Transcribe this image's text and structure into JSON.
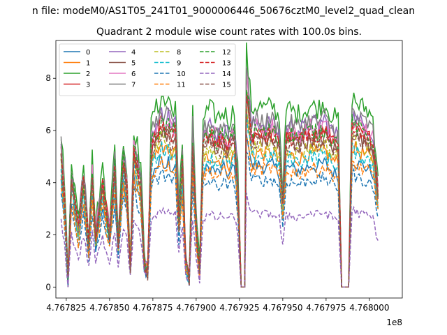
{
  "suptitle": "n file: modeM0/AS1T05_241T01_9000006446_50676cztM0_level2_quad_clean",
  "chart_data": {
    "type": "line",
    "title": "Quadrant 2 module wise count rates with 100.0s bins.",
    "xlabel": "",
    "ylabel": "",
    "offset_text": "1e8",
    "xlim": [
      476781900,
      476801900
    ],
    "ylim": [
      -0.42,
      9.45
    ],
    "x_start": 476782200,
    "x_step": 100,
    "x_count": 184,
    "xticks": [
      476782500,
      476785000,
      476787500,
      476790000,
      476792500,
      476795000,
      476797500,
      476800000
    ],
    "xtick_labels": [
      "4.767825",
      "4.767850",
      "4.767875",
      "4.767900",
      "4.767925",
      "4.767950",
      "4.767975",
      "4.768000"
    ],
    "yticks": [
      0,
      2,
      4,
      6,
      8
    ],
    "ytick_labels": [
      "0",
      "2",
      "4",
      "6",
      "8"
    ],
    "grid": false,
    "legend_position": "top-left",
    "profile": [
      [
        0,
        5.2
      ],
      [
        2,
        3.4
      ],
      [
        4,
        0.25
      ],
      [
        6,
        4.3
      ],
      [
        10,
        2.3
      ],
      [
        13,
        4.2
      ],
      [
        16,
        1.7
      ],
      [
        18,
        4.3
      ],
      [
        20,
        2.0
      ],
      [
        24,
        4.0
      ],
      [
        28,
        2.1
      ],
      [
        31,
        4.6
      ],
      [
        33,
        1.8
      ],
      [
        36,
        5.0
      ],
      [
        38,
        3.8
      ],
      [
        40,
        0.9
      ],
      [
        42,
        5.3
      ],
      [
        46,
        4.1
      ],
      [
        48,
        1.0
      ],
      [
        50,
        0.6
      ],
      [
        52,
        5.3
      ],
      [
        54,
        5.9
      ],
      [
        56,
        5.9
      ],
      [
        58,
        6.4
      ],
      [
        60,
        6.0
      ],
      [
        62,
        6.3
      ],
      [
        64,
        5.8
      ],
      [
        66,
        6.1
      ],
      [
        68,
        2.6
      ],
      [
        70,
        4.8
      ],
      [
        72,
        0.9
      ],
      [
        74,
        0.4
      ],
      [
        76,
        5.8
      ],
      [
        78,
        2.4
      ],
      [
        80,
        0.6
      ],
      [
        82,
        5.6
      ],
      [
        86,
        5.9
      ],
      [
        90,
        5.6
      ],
      [
        94,
        5.8
      ],
      [
        97,
        5.5
      ],
      [
        100,
        5.9
      ],
      [
        102,
        4.0
      ],
      [
        104,
        0.0
      ],
      [
        106,
        0.0
      ],
      [
        107,
        7.8
      ],
      [
        110,
        5.9
      ],
      [
        114,
        6.0
      ],
      [
        118,
        5.9
      ],
      [
        122,
        6.0
      ],
      [
        124,
        5.8
      ],
      [
        126,
        5.6
      ],
      [
        128,
        3.3
      ],
      [
        130,
        5.8
      ],
      [
        132,
        5.9
      ],
      [
        136,
        5.7
      ],
      [
        140,
        5.8
      ],
      [
        144,
        6.0
      ],
      [
        148,
        5.9
      ],
      [
        152,
        6.1
      ],
      [
        156,
        5.7
      ],
      [
        160,
        5.5
      ],
      [
        162,
        0.0
      ],
      [
        166,
        0.0
      ],
      [
        168,
        6.3
      ],
      [
        172,
        6.0
      ],
      [
        176,
        5.9
      ],
      [
        180,
        5.6
      ],
      [
        183,
        3.8
      ]
    ],
    "series": [
      {
        "name": "0",
        "color": "#1f77b4",
        "dash": "solid",
        "scale": 0.78
      },
      {
        "name": "1",
        "color": "#ff7f0e",
        "dash": "solid",
        "scale": 0.86
      },
      {
        "name": "2",
        "color": "#2ca02c",
        "dash": "solid",
        "scale": 1.16
      },
      {
        "name": "3",
        "color": "#d62728",
        "dash": "solid",
        "scale": 0.99
      },
      {
        "name": "4",
        "color": "#9467bd",
        "dash": "solid",
        "scale": 1.05
      },
      {
        "name": "5",
        "color": "#8c564b",
        "dash": "solid",
        "scale": 0.95
      },
      {
        "name": "6",
        "color": "#e377c2",
        "dash": "solid",
        "scale": 1.02
      },
      {
        "name": "7",
        "color": "#7f7f7f",
        "dash": "solid",
        "scale": 1.07
      },
      {
        "name": "8",
        "color": "#bcbd22",
        "dash": "dashed",
        "scale": 0.9
      },
      {
        "name": "9",
        "color": "#17becf",
        "dash": "dashed",
        "scale": 0.84
      },
      {
        "name": "10",
        "color": "#1f77b4",
        "dash": "dashed",
        "scale": 0.69
      },
      {
        "name": "11",
        "color": "#ff7f0e",
        "dash": "dashed",
        "scale": 0.76
      },
      {
        "name": "12",
        "color": "#2ca02c",
        "dash": "dashed",
        "scale": 1.0
      },
      {
        "name": "13",
        "color": "#d62728",
        "dash": "dashed",
        "scale": 0.97
      },
      {
        "name": "14",
        "color": "#9467bd",
        "dash": "dashed",
        "scale": 0.47
      },
      {
        "name": "15",
        "color": "#8c564b",
        "dash": "dashed",
        "scale": 0.93
      }
    ]
  }
}
